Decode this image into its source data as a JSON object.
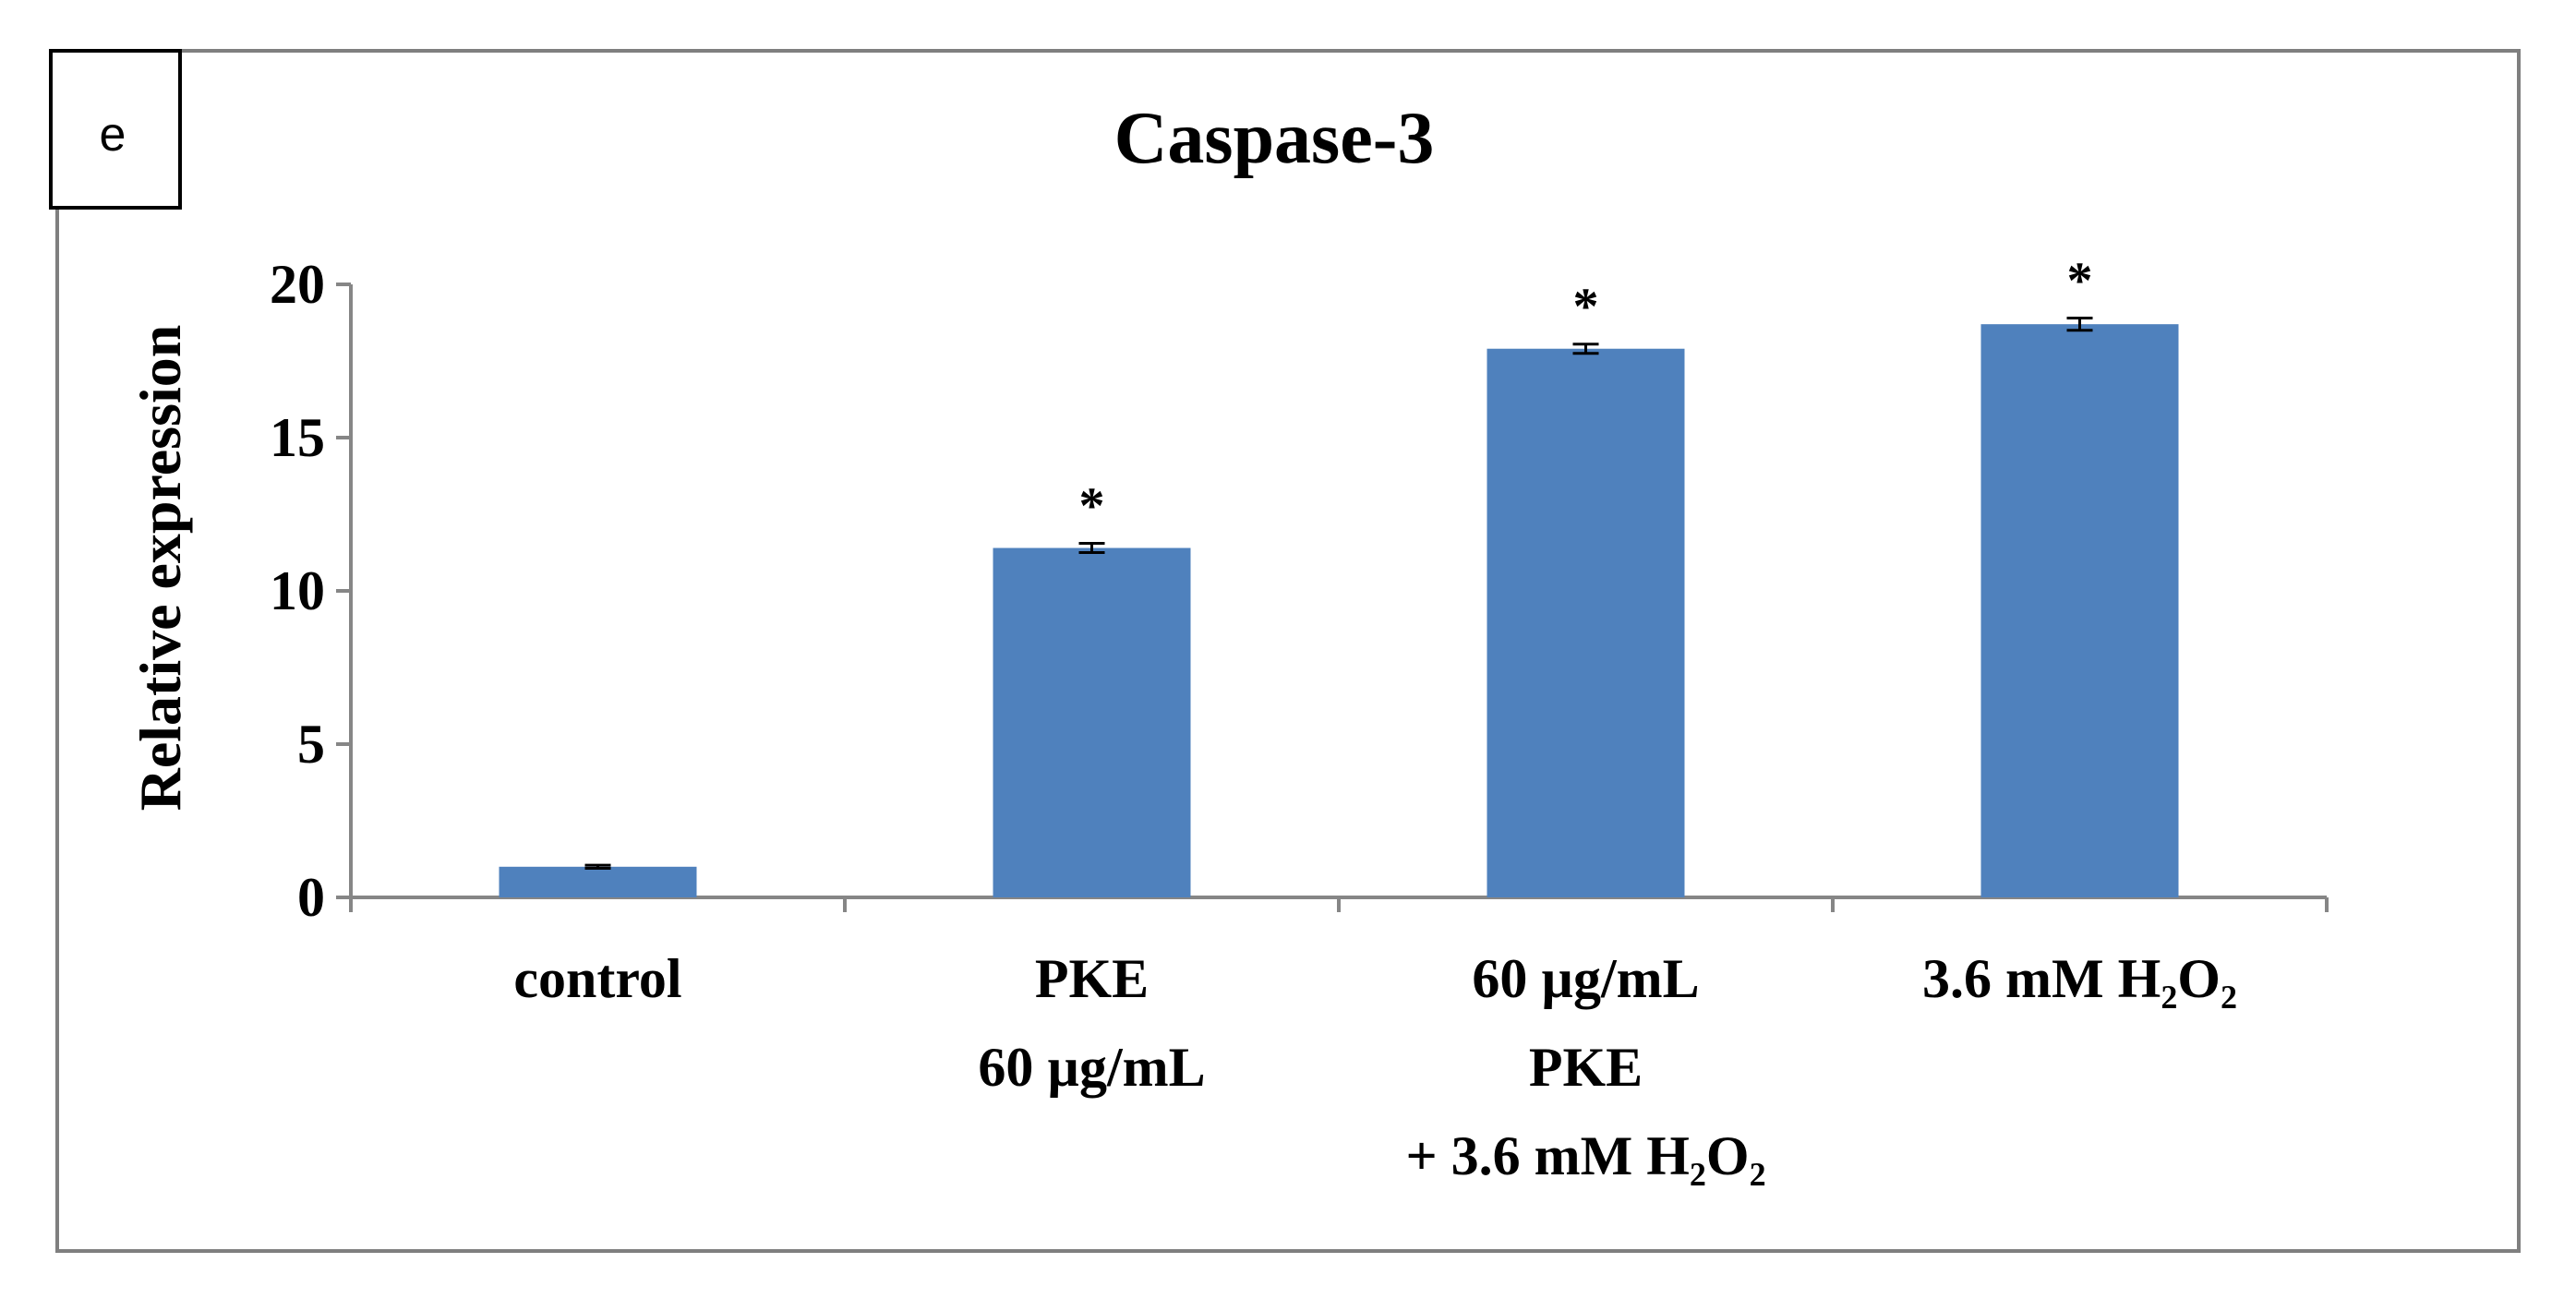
{
  "panel_label": "e",
  "chart_data": {
    "type": "bar",
    "title": "Caspase-3",
    "xlabel": "",
    "ylabel": "Relative expression",
    "ylim": [
      0,
      20
    ],
    "yticks": [
      0,
      5,
      10,
      15,
      20
    ],
    "grid": false,
    "legend": "none",
    "categories": [
      [
        "control"
      ],
      [
        "PKE",
        "60 µg/mL"
      ],
      [
        "60 µg/mL",
        "PKE",
        "+ 3.6 mM H₂O₂"
      ],
      [
        "3.6 mM H₂O₂"
      ]
    ],
    "series": [
      {
        "name": "Caspase-3",
        "values": [
          1.0,
          11.4,
          17.9,
          18.7
        ],
        "errors": [
          0.05,
          0.15,
          0.15,
          0.2
        ],
        "annotations": [
          "",
          "*",
          "*",
          "*"
        ]
      }
    ],
    "colors": {
      "bar": "#4f81bd",
      "axis": "#868686",
      "frame": "#7f7f7f",
      "text": "#000000"
    }
  }
}
